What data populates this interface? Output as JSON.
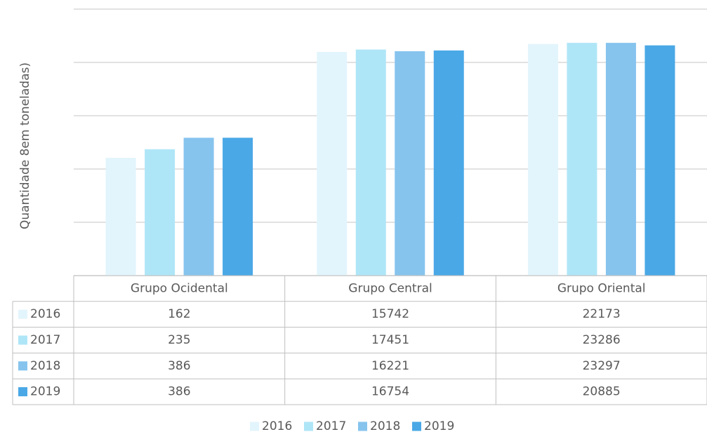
{
  "chart_data": {
    "type": "bar",
    "y_label": "Quantidade 8em toneladas)",
    "categories": [
      "Grupo Ocidental",
      "Grupo Central",
      "Grupo Oriental"
    ],
    "series": [
      {
        "name": "2016",
        "color": "#e3f5fc",
        "values": [
          162,
          15742,
          22173
        ]
      },
      {
        "name": "2017",
        "color": "#afe6f7",
        "values": [
          235,
          17451,
          23286
        ]
      },
      {
        "name": "2018",
        "color": "#86c4ee",
        "values": [
          386,
          16221,
          23297
        ]
      },
      {
        "name": "2019",
        "color": "#4aa8e6",
        "values": [
          386,
          16754,
          20885
        ]
      }
    ],
    "log_scale": true,
    "ylim": [
      1,
      100000
    ],
    "yticks": [
      1,
      10,
      100,
      1000,
      10000,
      100000
    ],
    "grid": true,
    "data_table": true,
    "legend": "bottom"
  }
}
